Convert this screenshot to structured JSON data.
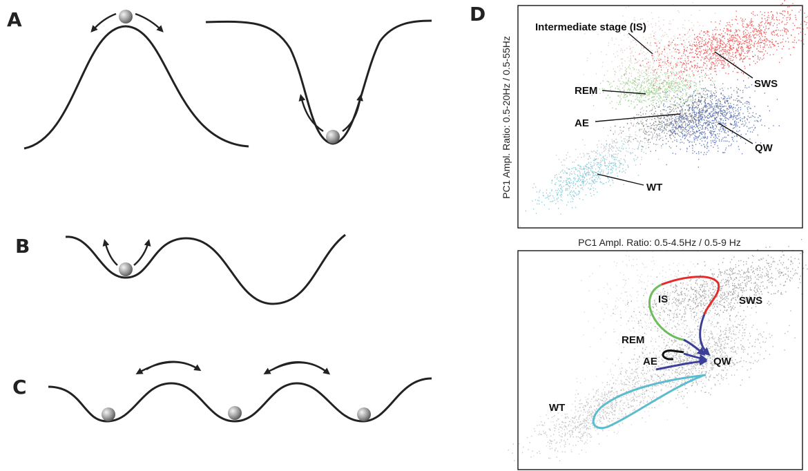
{
  "panels": {
    "A": {
      "label": "A"
    },
    "B": {
      "label": "B"
    },
    "C": {
      "label": "C"
    },
    "D": {
      "label": "D",
      "top": {
        "y_axis_label": "PC1 Ampl. Ratio: 0.5-20Hz / 0.5-55Hz",
        "x_axis_label": "PC1 Ampl. Ratio: 0.5-4.5Hz / 0.5-9 Hz",
        "annotations": [
          "Intermediate stage (IS)",
          "REM",
          "AE",
          "SWS",
          "QW",
          "WT"
        ]
      },
      "bottom": {
        "annotations": [
          "IS",
          "SWS",
          "REM",
          "AE",
          "QW",
          "WT"
        ]
      }
    }
  }
}
